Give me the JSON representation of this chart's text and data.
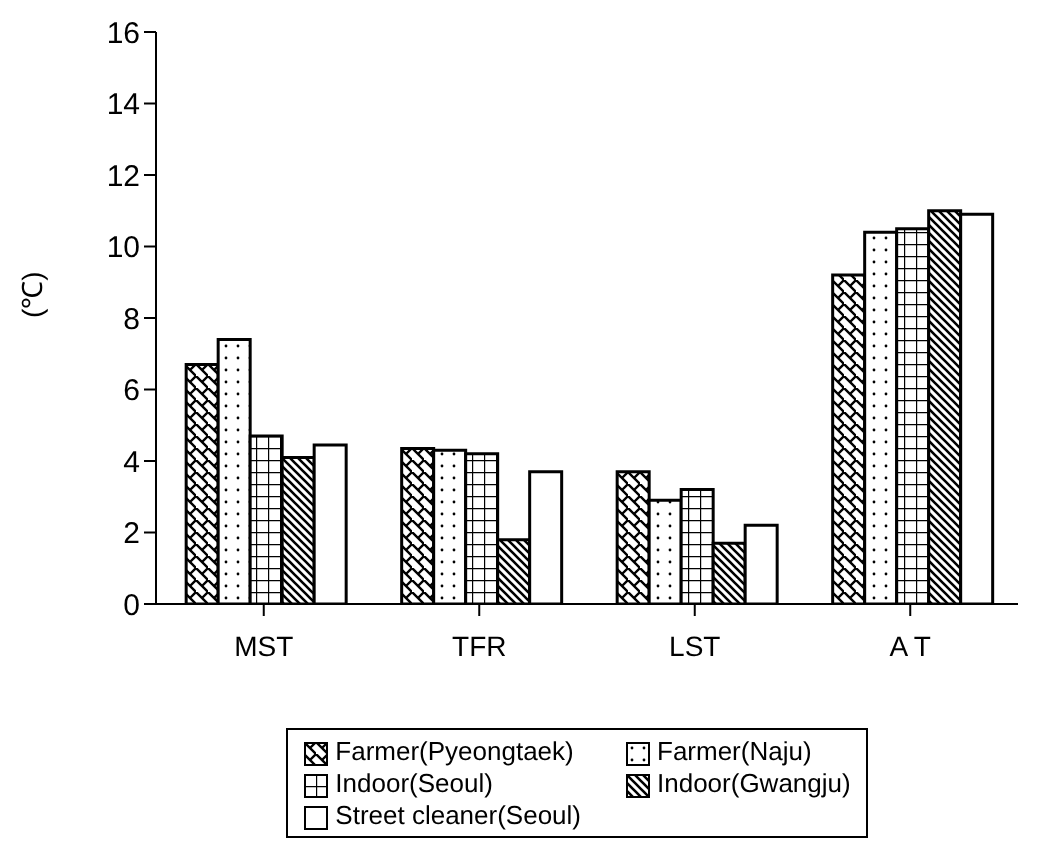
{
  "chart_data": {
    "type": "bar",
    "ylabel": "(℃)",
    "categories": [
      "MST",
      "TFR",
      "LST",
      "A T"
    ],
    "series": [
      {
        "name": "Farmer(Pyeongtaek)",
        "color": "#000000",
        "values": [
          6.7,
          4.35,
          3.7,
          9.2
        ]
      },
      {
        "name": "Farmer(Naju)",
        "color": "#000000",
        "values": [
          7.4,
          4.3,
          2.9,
          10.4
        ]
      },
      {
        "name": "Indoor(Seoul)",
        "color": "#000000",
        "values": [
          4.7,
          4.2,
          3.2,
          10.5
        ]
      },
      {
        "name": "Indoor(Gwangju)",
        "color": "#000000",
        "values": [
          4.1,
          1.8,
          1.7,
          11.0
        ]
      },
      {
        "name": "Street cleaner(Seoul)",
        "color": "#000000",
        "values": [
          4.45,
          3.7,
          2.2,
          10.9
        ]
      }
    ],
    "ylim": [
      0,
      16
    ],
    "yticks": [
      0,
      2,
      4,
      6,
      8,
      10,
      12,
      14,
      16
    ],
    "grid": false,
    "legend": "bottom"
  }
}
